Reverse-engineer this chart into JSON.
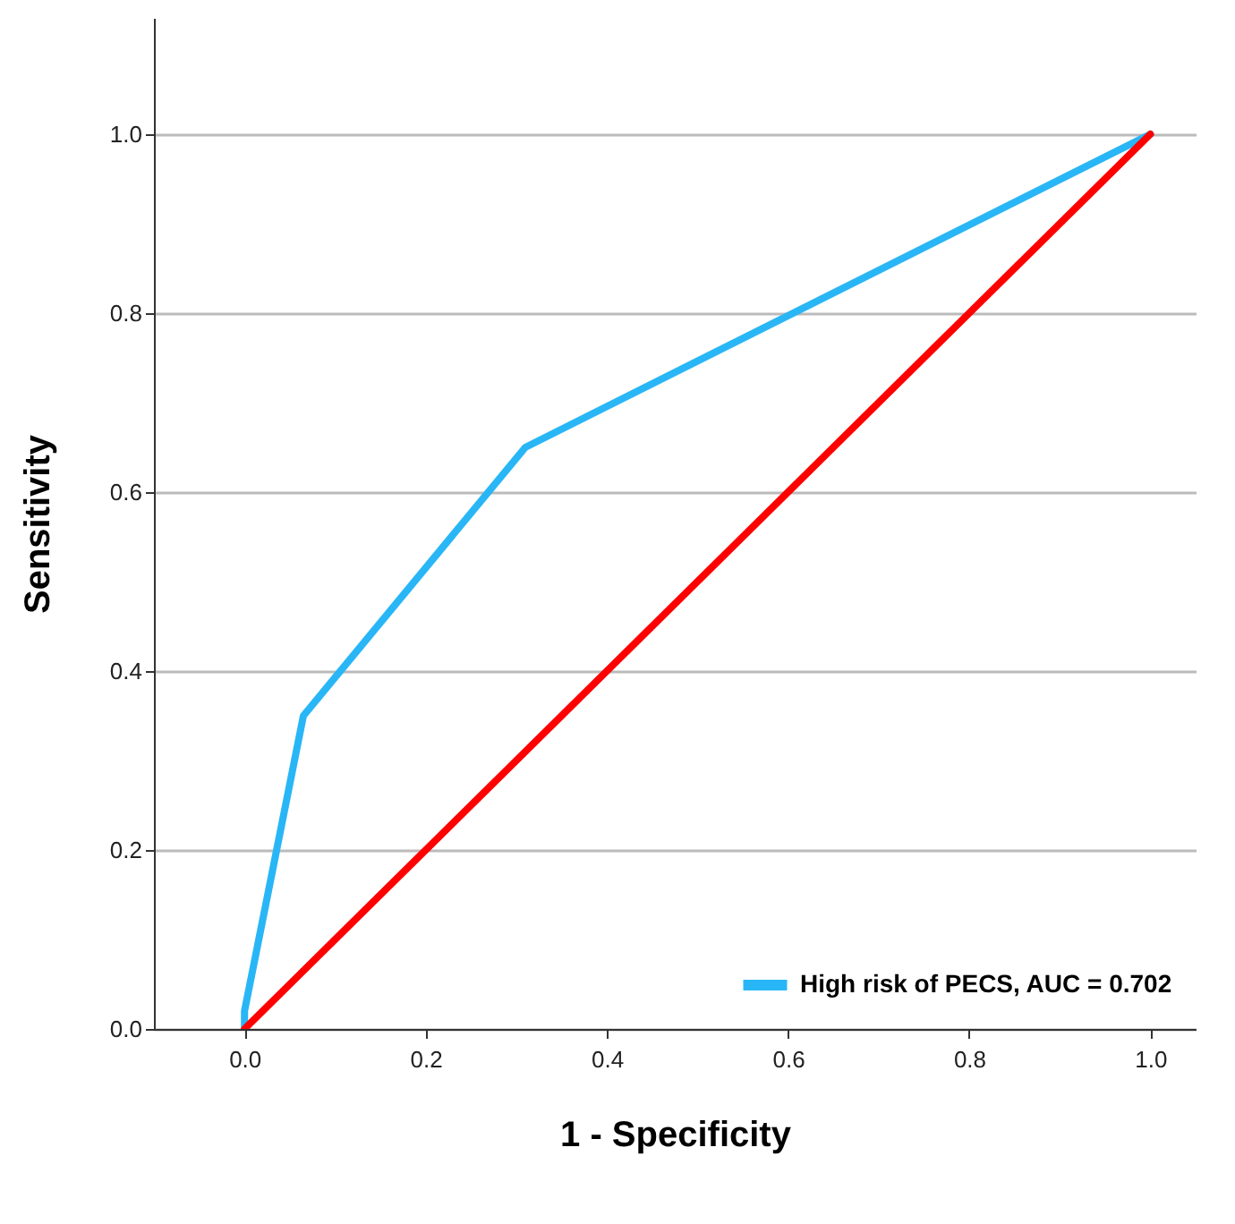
{
  "chart_data": {
    "type": "line",
    "xlabel": "1 - Specificity",
    "ylabel": "Sensitivity",
    "xlim": [
      -0.1,
      1.05
    ],
    "ylim": [
      0,
      1.13
    ],
    "xticks": [
      {
        "value": 0,
        "label": "0.0"
      },
      0.2,
      0.4,
      0.6,
      0.8,
      {
        "value": 1,
        "label": "1.0"
      }
    ],
    "yticks": [
      {
        "value": 0,
        "label": "0.0"
      },
      0.2,
      0.4,
      0.6,
      0.8,
      {
        "value": 1,
        "label": "1.0"
      }
    ],
    "grid": "y",
    "legend": "bottom right",
    "line_style": "solid",
    "series": [
      {
        "name": "High risk of PECS, AUC = 0.702",
        "color": "#29b6f6",
        "x": [
          0,
          0,
          0.065,
          0.31,
          1
        ],
        "values": [
          0,
          0.02,
          0.35,
          0.65,
          1
        ]
      },
      {
        "color": "#ff0000",
        "x": [
          0,
          1
        ],
        "values": [
          0,
          1
        ]
      }
    ]
  }
}
